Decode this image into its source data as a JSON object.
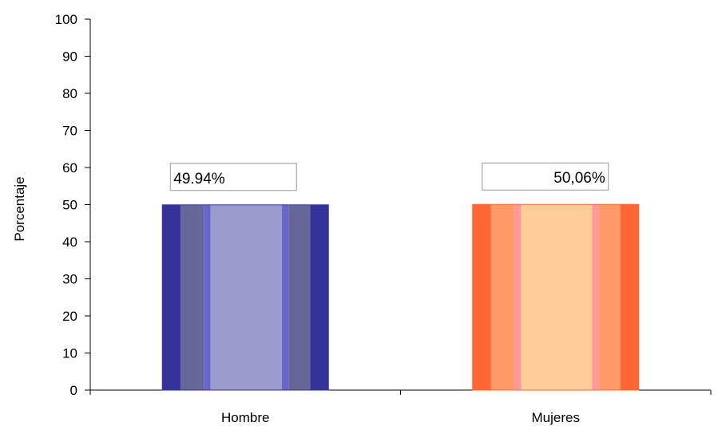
{
  "chart_data": {
    "type": "bar",
    "title": "",
    "xlabel": "",
    "ylabel": "Porcentaje",
    "ylim": [
      0,
      100
    ],
    "yticks": [
      0,
      10,
      20,
      30,
      40,
      50,
      60,
      70,
      80,
      90,
      100
    ],
    "categories": [
      "Hombre",
      "Mujeres"
    ],
    "values": [
      49.94,
      50.06
    ],
    "data_labels": [
      "49.94%",
      "50,06%"
    ],
    "grid": false,
    "legend": "none",
    "colors": {
      "Hombre": {
        "outer": "#333399",
        "band": "#666699",
        "inner_edge": "#6666cc",
        "center": "#9999cc"
      },
      "Mujeres": {
        "outer": "#ff6633",
        "band": "#ff9966",
        "inner_edge": "#ff9999",
        "center": "#ffcc99"
      }
    }
  }
}
